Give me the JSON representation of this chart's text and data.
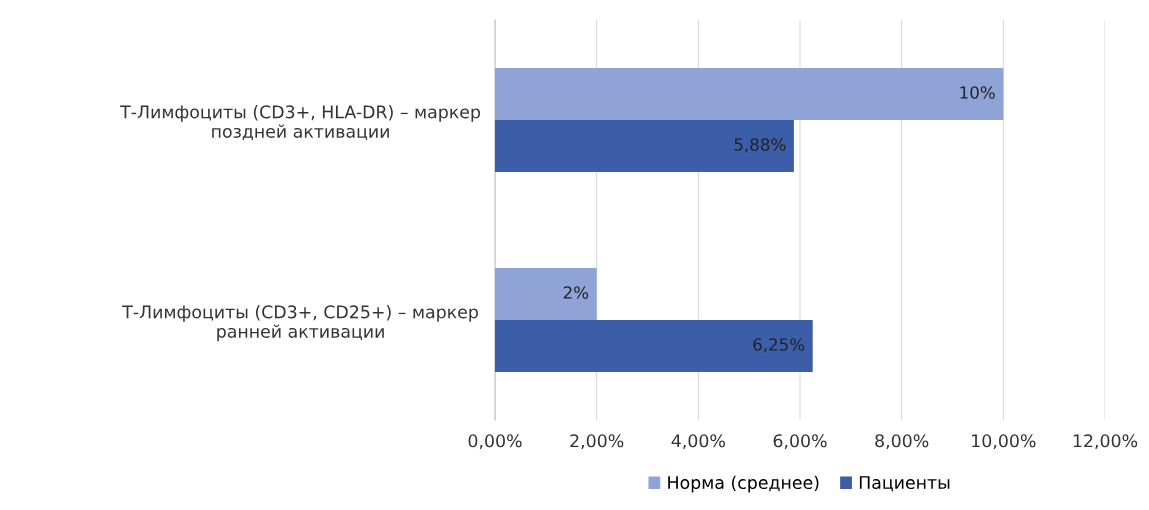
{
  "chart_data": {
    "type": "bar",
    "orientation": "horizontal",
    "categories": [
      "Т-Лимфоциты (CD3+, HLA-DR) – маркер\nпоздней активации",
      "Т-Лимфоциты (CD3+, CD25+) – маркер\nранней активации"
    ],
    "series": [
      {
        "name": "Норма (среднее)",
        "color": "#8fa3d6",
        "values": [
          10,
          2
        ],
        "value_labels": [
          "10%",
          "2%"
        ]
      },
      {
        "name": "Пациенты",
        "color": "#3c5ea8",
        "values": [
          5.88,
          6.25
        ],
        "value_labels": [
          "5,88%",
          "6,25%"
        ]
      }
    ],
    "xlim": [
      0,
      12
    ],
    "xticks": [
      {
        "value": 0,
        "label": "0,00%"
      },
      {
        "value": 2,
        "label": "2,00%"
      },
      {
        "value": 4,
        "label": "4,00%"
      },
      {
        "value": 6,
        "label": "6,00%"
      },
      {
        "value": 8,
        "label": "8,00%"
      },
      {
        "value": 10,
        "label": "10,00%"
      },
      {
        "value": 12,
        "label": "12,00%"
      }
    ],
    "grid": "x",
    "legend": "bottom"
  }
}
